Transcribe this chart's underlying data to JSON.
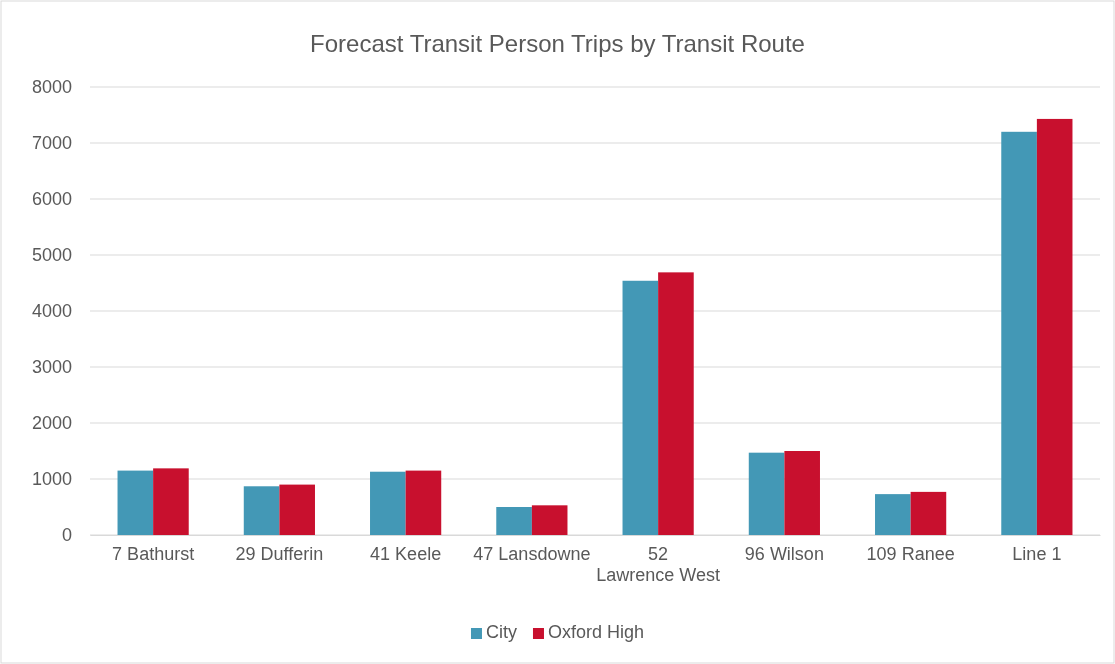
{
  "chart_data": {
    "type": "bar",
    "title": "Forecast Transit Person Trips by Transit Route",
    "categories": [
      "7 Bathurst",
      "29 Dufferin",
      "41 Keele",
      "47 Lansdowne",
      "52 Lawrence West",
      "96 Wilson",
      "109 Ranee",
      "Line 1"
    ],
    "series": [
      {
        "name": "City",
        "color": "#4398b6",
        "values": [
          1150,
          870,
          1130,
          500,
          4540,
          1470,
          730,
          7200
        ]
      },
      {
        "name": "Oxford High",
        "color": "#c8102e",
        "values": [
          1190,
          900,
          1150,
          530,
          4690,
          1500,
          770,
          7430
        ]
      }
    ],
    "ylim": [
      0,
      8000
    ],
    "yticks": [
      0,
      1000,
      2000,
      3000,
      4000,
      5000,
      6000,
      7000,
      8000
    ],
    "grid": "y",
    "legend": "bottom"
  }
}
